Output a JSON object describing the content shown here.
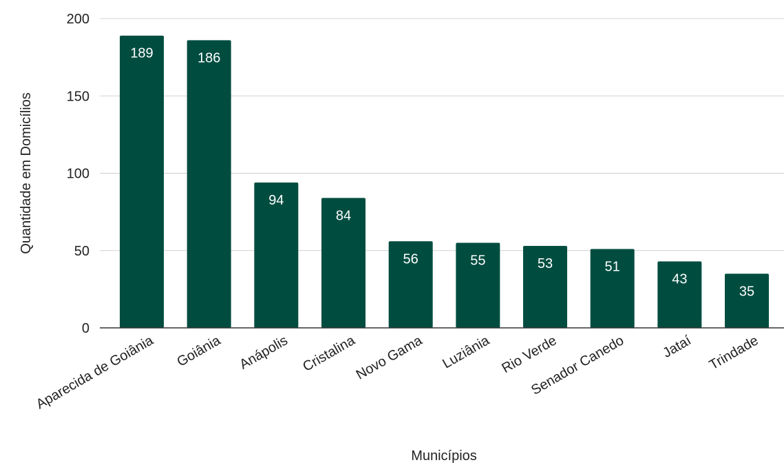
{
  "chart_data": {
    "type": "bar",
    "title": "",
    "xlabel": "Municípios",
    "ylabel": "Quantidade em Domicílios",
    "categories": [
      "Aparecida de Goiânia",
      "Goiânia",
      "Anápolis",
      "Cristalina",
      "Novo Gama",
      "Luziânia",
      "Rio Verde",
      "Senador Canedo",
      "Jataí",
      "Trindade"
    ],
    "values": [
      189,
      186,
      94,
      84,
      56,
      55,
      53,
      51,
      43,
      35
    ],
    "ylim": [
      0,
      200
    ],
    "yticks": [
      0,
      50,
      100,
      150,
      200
    ],
    "grid": true,
    "legend": "none",
    "bar_color": "#004d40",
    "data_label_color": "#ffffff"
  }
}
